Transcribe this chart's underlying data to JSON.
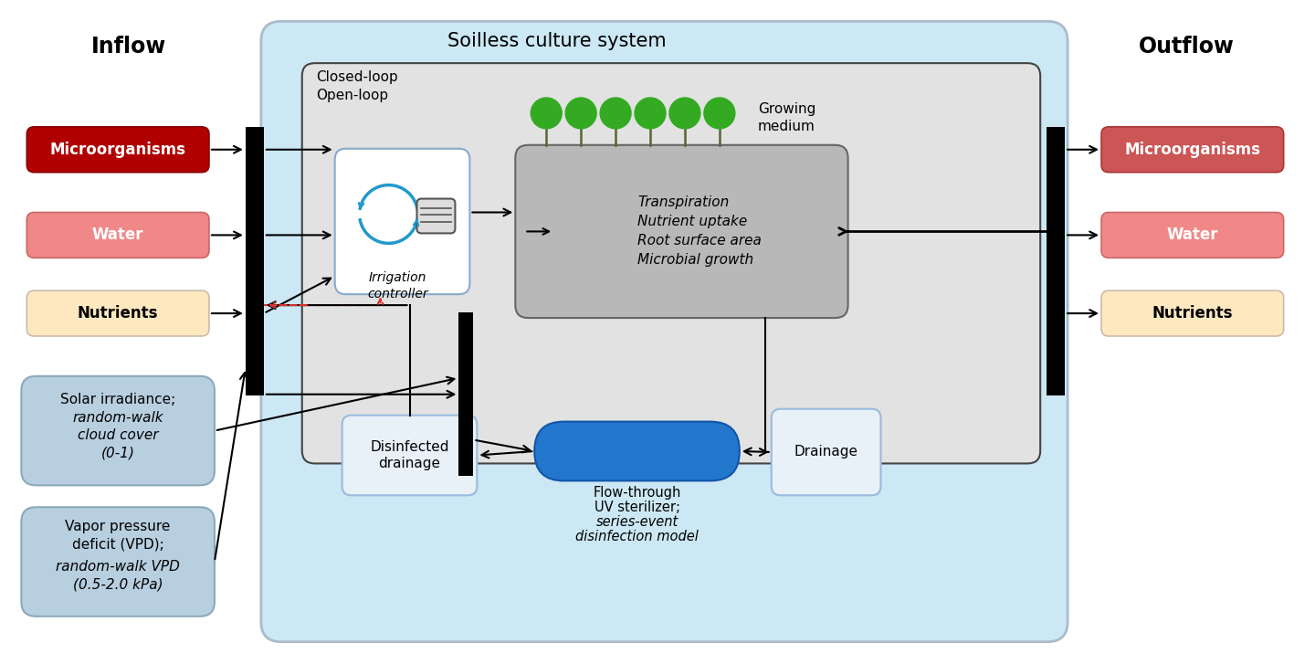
{
  "bg_color": "#ffffff",
  "soilless_bg": "#cce8f4",
  "soilless_edge": "#aabbcc",
  "inner_bg": "#e2e2e2",
  "inner_edge": "#444444",
  "uv_color": "#2277cc",
  "title_inflow": "Inflow",
  "title_outflow": "Outflow",
  "title_soilless": "Soilless culture system",
  "label_closed": "Closed-loop",
  "label_open": "Open-loop",
  "label_growing_1": "Growing",
  "label_growing_2": "medium",
  "label_irrigation_1": "Irrigation",
  "label_irrigation_2": "controller",
  "label_disinfected_1": "Disinfected",
  "label_disinfected_2": "drainage",
  "label_drainage": "Drainage",
  "label_uv_1": "Flow-through",
  "label_uv_2": "UV sterilizer;",
  "label_uv_3": "series-event",
  "label_uv_4": "disinfection model",
  "label_plant_1": "Transpiration",
  "label_plant_2": "Nutrient uptake",
  "label_plant_3": "Root surface area",
  "label_plant_4": "Microbial growth",
  "inflow_micro_fc": "#b00000",
  "inflow_micro_ec": "#880000",
  "inflow_micro_tc": "#ffffff",
  "inflow_water_fc": "#f08888",
  "inflow_water_ec": "#cc6666",
  "inflow_water_tc": "#ffffff",
  "inflow_nutr_fc": "#fde8c0",
  "inflow_nutr_ec": "#ccbbaa",
  "inflow_nutr_tc": "#000000",
  "outflow_micro_fc": "#cc5555",
  "outflow_micro_ec": "#aa3333",
  "outflow_micro_tc": "#ffffff",
  "outflow_water_fc": "#f08888",
  "outflow_water_ec": "#cc6666",
  "outflow_water_tc": "#ffffff",
  "outflow_nutr_fc": "#fde8c0",
  "outflow_nutr_ec": "#ccbbaa",
  "outflow_nutr_tc": "#000000",
  "env_fc": "#b8cfe0",
  "env_ec": "#8aaabb",
  "irrig_box_ec": "#88aacc",
  "plant_box_fc": "#b8b8b8",
  "plant_box_ec": "#666666",
  "white_box_ec": "#99bbdd",
  "dashed_red": "#dd3333",
  "arrow_color": "#111111",
  "plant_stem_color": "#556633",
  "plant_leaf_color": "#33aa22"
}
